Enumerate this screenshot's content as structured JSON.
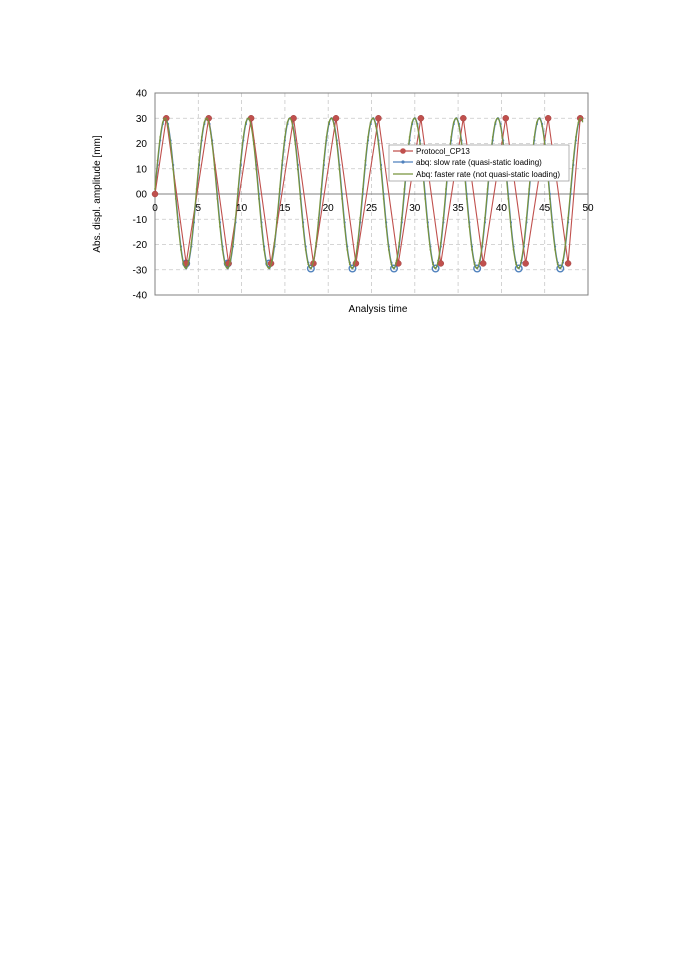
{
  "chart_data": {
    "type": "line",
    "title": "",
    "xlabel": "Analysis time",
    "ylabel": "Abs. displ. amplitude [mm]",
    "xlim": [
      0,
      50
    ],
    "ylim": [
      -40,
      40
    ],
    "xticks": [
      "0",
      "5",
      "10",
      "15",
      "20",
      "25",
      "30",
      "35",
      "40",
      "45",
      "50"
    ],
    "yticks": [
      "40",
      "30",
      "20",
      "10",
      "00",
      "-10",
      "-20",
      "-30",
      "-40"
    ],
    "grid": true,
    "legend_position": "right",
    "series": [
      {
        "name": "Protocol_CP13",
        "color": "#c0504d",
        "marker": "circle-large",
        "x": [
          0,
          1.3,
          3.6,
          6.2,
          8.5,
          11.1,
          13.4,
          16.0,
          18.3,
          20.9,
          23.2,
          25.8,
          28.1,
          30.7,
          33.0,
          35.6,
          37.9,
          40.5,
          42.8,
          45.4,
          47.7,
          49.1
        ],
        "y": [
          0,
          30,
          -27.5,
          30,
          -27.5,
          30,
          -27.5,
          30,
          -27.5,
          30,
          -27.5,
          30,
          -27.5,
          30,
          -27.5,
          30,
          -27.5,
          30,
          -27.5,
          30,
          -27.5,
          30
        ]
      },
      {
        "name": "abq: slow rate (quasi-static loading)",
        "color": "#4f81bd",
        "marker": "circle-small",
        "period": 4.8,
        "amplitude": 30,
        "x_start": 0,
        "x_end": 49.4,
        "min_points": [
          {
            "x": 3.6,
            "y": -27.5
          },
          {
            "x": 8.4,
            "y": -27.5
          },
          {
            "x": 13.2,
            "y": -27.5
          },
          {
            "x": 18.0,
            "y": -29.5
          },
          {
            "x": 22.8,
            "y": -29.5
          },
          {
            "x": 27.6,
            "y": -29.5
          },
          {
            "x": 32.4,
            "y": -29.5
          },
          {
            "x": 37.2,
            "y": -29.5
          },
          {
            "x": 42.0,
            "y": -29.5
          },
          {
            "x": 46.8,
            "y": -29.5
          }
        ]
      },
      {
        "name": "Abq: faster rate (not quasi-static loading)",
        "color": "#77933c",
        "marker": "none",
        "period": 4.8,
        "amplitude": 30,
        "x_start": 0,
        "x_end": 49.4
      }
    ]
  }
}
